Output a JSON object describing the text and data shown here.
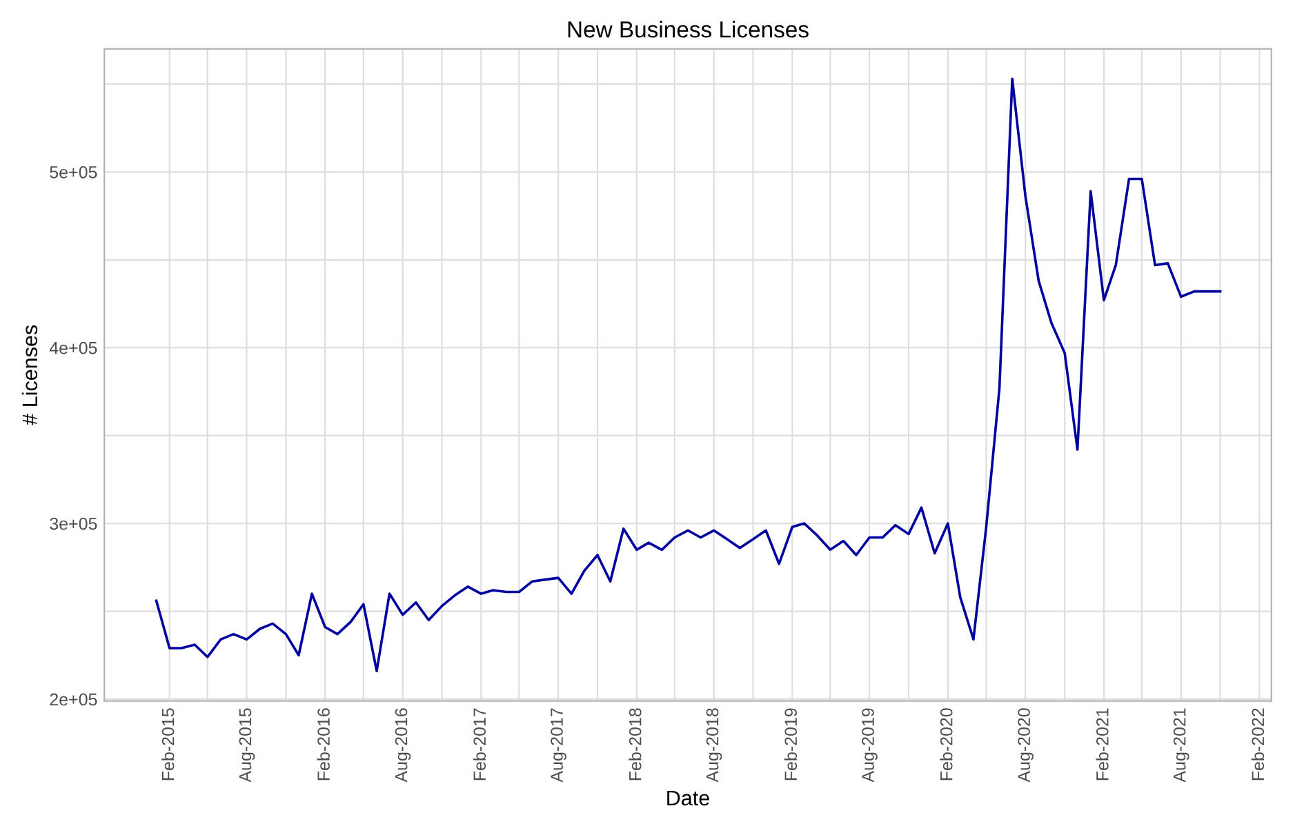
{
  "chart_data": {
    "type": "line",
    "title": "New Business Licenses",
    "xlabel": "Date",
    "ylabel": "# Licenses",
    "x": [
      "2015-01",
      "2015-02",
      "2015-03",
      "2015-04",
      "2015-05",
      "2015-06",
      "2015-07",
      "2015-08",
      "2015-09",
      "2015-10",
      "2015-11",
      "2015-12",
      "2016-01",
      "2016-02",
      "2016-03",
      "2016-04",
      "2016-05",
      "2016-06",
      "2016-07",
      "2016-08",
      "2016-09",
      "2016-10",
      "2016-11",
      "2016-12",
      "2017-01",
      "2017-02",
      "2017-03",
      "2017-04",
      "2017-05",
      "2017-06",
      "2017-07",
      "2017-08",
      "2017-09",
      "2017-10",
      "2017-11",
      "2017-12",
      "2018-01",
      "2018-02",
      "2018-03",
      "2018-04",
      "2018-05",
      "2018-06",
      "2018-07",
      "2018-08",
      "2018-09",
      "2018-10",
      "2018-11",
      "2018-12",
      "2019-01",
      "2019-02",
      "2019-03",
      "2019-04",
      "2019-05",
      "2019-06",
      "2019-07",
      "2019-08",
      "2019-09",
      "2019-10",
      "2019-11",
      "2019-12",
      "2020-01",
      "2020-02",
      "2020-03",
      "2020-04",
      "2020-05",
      "2020-06",
      "2020-07",
      "2020-08",
      "2020-09",
      "2020-10",
      "2020-11",
      "2020-12",
      "2021-01",
      "2021-02",
      "2021-03",
      "2021-04",
      "2021-05",
      "2021-06",
      "2021-07",
      "2021-08",
      "2021-09",
      "2021-10",
      "2021-11"
    ],
    "series": [
      {
        "color": "#0000a0",
        "values": [
          256000,
          229000,
          229000,
          231000,
          224000,
          234000,
          237000,
          234000,
          240000,
          243000,
          237000,
          225000,
          260000,
          241000,
          237000,
          244000,
          254000,
          216000,
          260000,
          248000,
          255000,
          245000,
          253000,
          259000,
          264000,
          260000,
          262000,
          261000,
          261000,
          267000,
          268000,
          269000,
          260000,
          273000,
          282000,
          267000,
          297000,
          285000,
          289000,
          285000,
          292000,
          296000,
          292000,
          296000,
          291000,
          286000,
          291000,
          296000,
          277000,
          298000,
          300000,
          293000,
          285000,
          290000,
          282000,
          292000,
          292000,
          299000,
          294000,
          309000,
          283000,
          300000,
          258000,
          234000,
          298000,
          377000,
          553000,
          486000,
          438000,
          414000,
          397000,
          342000,
          489000,
          427000,
          447000,
          496000,
          496000,
          447000,
          448000,
          429000,
          432000,
          432000,
          432000
        ]
      }
    ],
    "xlim": [
      "2014-09-01",
      "2022-03-01"
    ],
    "xticks": [
      {
        "value": "2015-02",
        "label": "Feb-2015"
      },
      {
        "value": "2015-05",
        "label": null
      },
      {
        "value": "2015-08",
        "label": "Aug-2015"
      },
      {
        "value": "2015-11",
        "label": null
      },
      {
        "value": "2016-02",
        "label": "Feb-2016"
      },
      {
        "value": "2016-05",
        "label": null
      },
      {
        "value": "2016-08",
        "label": "Aug-2016"
      },
      {
        "value": "2016-11",
        "label": null
      },
      {
        "value": "2017-02",
        "label": "Feb-2017"
      },
      {
        "value": "2017-05",
        "label": null
      },
      {
        "value": "2017-08",
        "label": "Aug-2017"
      },
      {
        "value": "2017-11",
        "label": null
      },
      {
        "value": "2018-02",
        "label": "Feb-2018"
      },
      {
        "value": "2018-05",
        "label": null
      },
      {
        "value": "2018-08",
        "label": "Aug-2018"
      },
      {
        "value": "2018-11",
        "label": null
      },
      {
        "value": "2019-02",
        "label": "Feb-2019"
      },
      {
        "value": "2019-05",
        "label": null
      },
      {
        "value": "2019-08",
        "label": "Aug-2019"
      },
      {
        "value": "2019-11",
        "label": null
      },
      {
        "value": "2020-02",
        "label": "Feb-2020"
      },
      {
        "value": "2020-05",
        "label": null
      },
      {
        "value": "2020-08",
        "label": "Aug-2020"
      },
      {
        "value": "2020-11",
        "label": null
      },
      {
        "value": "2021-02",
        "label": "Feb-2021"
      },
      {
        "value": "2021-05",
        "label": null
      },
      {
        "value": "2021-08",
        "label": "Aug-2021"
      },
      {
        "value": "2021-11",
        "label": null
      },
      {
        "value": "2022-02",
        "label": "Feb-2022"
      }
    ],
    "ylim": [
      199000,
      570000
    ],
    "yticks": [
      {
        "value": 200000,
        "label": "2e+05"
      },
      {
        "value": 250000,
        "label": null
      },
      {
        "value": 300000,
        "label": "3e+05"
      },
      {
        "value": 350000,
        "label": null
      },
      {
        "value": 400000,
        "label": "4e+05"
      },
      {
        "value": 450000,
        "label": null
      },
      {
        "value": 500000,
        "label": "5e+05"
      },
      {
        "value": 550000,
        "label": null
      }
    ],
    "grid": true,
    "line_style": "solid",
    "marker": "none"
  }
}
